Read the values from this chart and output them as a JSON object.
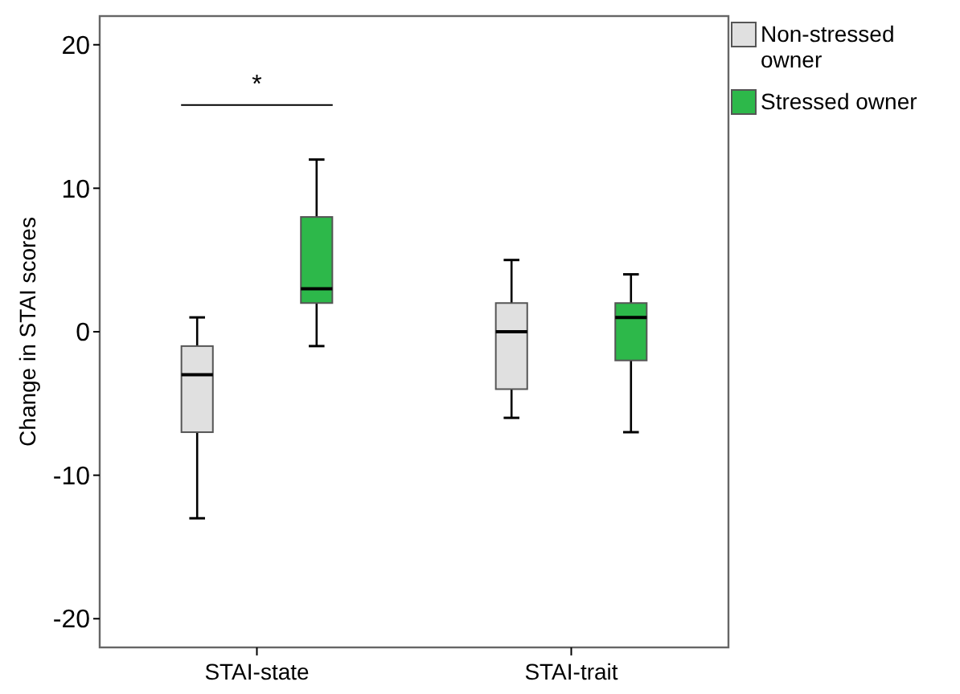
{
  "chart_data": {
    "type": "box",
    "ylabel": "Change in STAI scores",
    "categories": [
      "STAI-state",
      "STAI-trait"
    ],
    "ylim": [
      -22,
      22
    ],
    "yticks": [
      -20,
      -10,
      0,
      10,
      20
    ],
    "grid": false,
    "legend": "top right",
    "annotations": [
      "*"
    ],
    "series": [
      {
        "name": "Non-stressed owner",
        "color": "#e0e0e0",
        "boxes": [
          {
            "low": -13,
            "q1": -7,
            "median": -3,
            "q3": -1,
            "high": 1
          },
          {
            "low": -6,
            "q1": -4,
            "median": 0,
            "q3": 2,
            "high": 5
          }
        ]
      },
      {
        "name": "Stressed owner",
        "color": "#2db84a",
        "boxes": [
          {
            "low": -1,
            "q1": 2,
            "median": 3,
            "q3": 8,
            "high": 12
          },
          {
            "low": -7,
            "q1": -2,
            "median": 1,
            "q3": 2,
            "high": 4
          }
        ]
      }
    ]
  }
}
